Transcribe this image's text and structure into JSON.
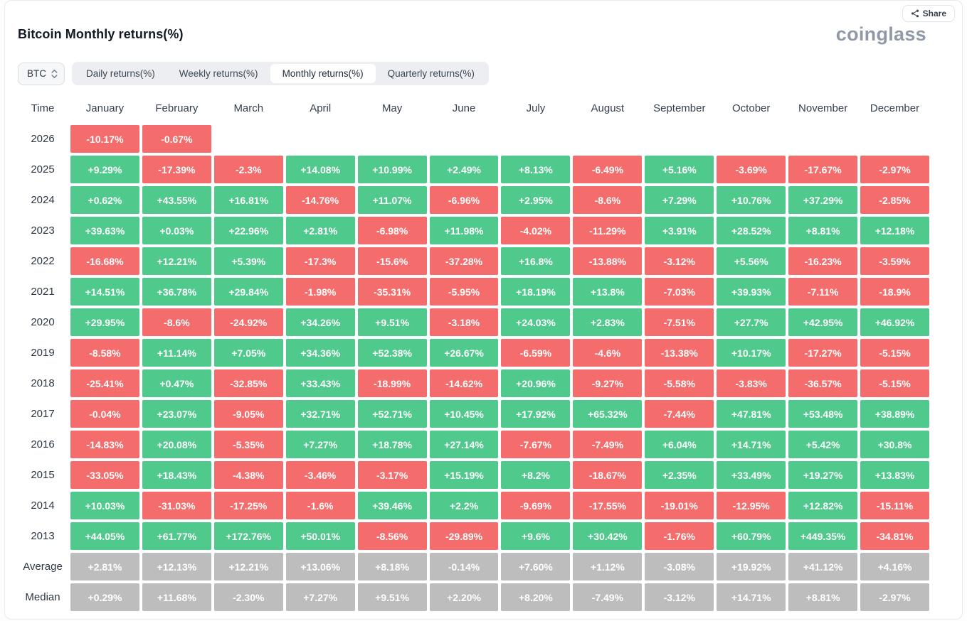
{
  "header": {
    "title": "Bitcoin Monthly returns(%)",
    "logo": "coinglass",
    "share_label": "Share",
    "share_icon": "share-nodes-icon"
  },
  "controls": {
    "coin_selector": {
      "value": "BTC",
      "icon": "updown-chevron-icon"
    },
    "tabs": [
      {
        "name": "tab-daily-returns",
        "label": "Daily returns(%)",
        "active": false
      },
      {
        "name": "tab-weekly-returns",
        "label": "Weekly returns(%)",
        "active": false
      },
      {
        "name": "tab-monthly-returns",
        "label": "Monthly returns(%)",
        "active": true
      },
      {
        "name": "tab-quarterly-returns",
        "label": "Quarterly returns(%)",
        "active": false
      }
    ]
  },
  "chart_data": {
    "type": "heatmap",
    "title": "Bitcoin Monthly returns(%)",
    "legend": "green = positive monthly return, red = negative monthly return, gray = summary rows",
    "columns": [
      "Time",
      "January",
      "February",
      "March",
      "April",
      "May",
      "June",
      "July",
      "August",
      "September",
      "October",
      "November",
      "December"
    ],
    "rows": [
      {
        "label": "2026",
        "summary": false,
        "values": [
          "-10.17%",
          "-0.67%",
          null,
          null,
          null,
          null,
          null,
          null,
          null,
          null,
          null,
          null
        ]
      },
      {
        "label": "2025",
        "summary": false,
        "values": [
          "+9.29%",
          "-17.39%",
          "-2.3%",
          "+14.08%",
          "+10.99%",
          "+2.49%",
          "+8.13%",
          "-6.49%",
          "+5.16%",
          "-3.69%",
          "-17.67%",
          "-2.97%"
        ]
      },
      {
        "label": "2024",
        "summary": false,
        "values": [
          "+0.62%",
          "+43.55%",
          "+16.81%",
          "-14.76%",
          "+11.07%",
          "-6.96%",
          "+2.95%",
          "-8.6%",
          "+7.29%",
          "+10.76%",
          "+37.29%",
          "-2.85%"
        ]
      },
      {
        "label": "2023",
        "summary": false,
        "values": [
          "+39.63%",
          "+0.03%",
          "+22.96%",
          "+2.81%",
          "-6.98%",
          "+11.98%",
          "-4.02%",
          "-11.29%",
          "+3.91%",
          "+28.52%",
          "+8.81%",
          "+12.18%"
        ]
      },
      {
        "label": "2022",
        "summary": false,
        "values": [
          "-16.68%",
          "+12.21%",
          "+5.39%",
          "-17.3%",
          "-15.6%",
          "-37.28%",
          "+16.8%",
          "-13.88%",
          "-3.12%",
          "+5.56%",
          "-16.23%",
          "-3.59%"
        ]
      },
      {
        "label": "2021",
        "summary": false,
        "values": [
          "+14.51%",
          "+36.78%",
          "+29.84%",
          "-1.98%",
          "-35.31%",
          "-5.95%",
          "+18.19%",
          "+13.8%",
          "-7.03%",
          "+39.93%",
          "-7.11%",
          "-18.9%"
        ]
      },
      {
        "label": "2020",
        "summary": false,
        "values": [
          "+29.95%",
          "-8.6%",
          "-24.92%",
          "+34.26%",
          "+9.51%",
          "-3.18%",
          "+24.03%",
          "+2.83%",
          "-7.51%",
          "+27.7%",
          "+42.95%",
          "+46.92%"
        ]
      },
      {
        "label": "2019",
        "summary": false,
        "values": [
          "-8.58%",
          "+11.14%",
          "+7.05%",
          "+34.36%",
          "+52.38%",
          "+26.67%",
          "-6.59%",
          "-4.6%",
          "-13.38%",
          "+10.17%",
          "-17.27%",
          "-5.15%"
        ]
      },
      {
        "label": "2018",
        "summary": false,
        "values": [
          "-25.41%",
          "+0.47%",
          "-32.85%",
          "+33.43%",
          "-18.99%",
          "-14.62%",
          "+20.96%",
          "-9.27%",
          "-5.58%",
          "-3.83%",
          "-36.57%",
          "-5.15%"
        ]
      },
      {
        "label": "2017",
        "summary": false,
        "values": [
          "-0.04%",
          "+23.07%",
          "-9.05%",
          "+32.71%",
          "+52.71%",
          "+10.45%",
          "+17.92%",
          "+65.32%",
          "-7.44%",
          "+47.81%",
          "+53.48%",
          "+38.89%"
        ]
      },
      {
        "label": "2016",
        "summary": false,
        "values": [
          "-14.83%",
          "+20.08%",
          "-5.35%",
          "+7.27%",
          "+18.78%",
          "+27.14%",
          "-7.67%",
          "-7.49%",
          "+6.04%",
          "+14.71%",
          "+5.42%",
          "+30.8%"
        ]
      },
      {
        "label": "2015",
        "summary": false,
        "values": [
          "-33.05%",
          "+18.43%",
          "-4.38%",
          "-3.46%",
          "-3.17%",
          "+15.19%",
          "+8.2%",
          "-18.67%",
          "+2.35%",
          "+33.49%",
          "+19.27%",
          "+13.83%"
        ]
      },
      {
        "label": "2014",
        "summary": false,
        "values": [
          "+10.03%",
          "-31.03%",
          "-17.25%",
          "-1.6%",
          "+39.46%",
          "+2.2%",
          "-9.69%",
          "-17.55%",
          "-19.01%",
          "-12.95%",
          "+12.82%",
          "-15.11%"
        ]
      },
      {
        "label": "2013",
        "summary": false,
        "values": [
          "+44.05%",
          "+61.77%",
          "+172.76%",
          "+50.01%",
          "-8.56%",
          "-29.89%",
          "+9.6%",
          "+30.42%",
          "-1.76%",
          "+60.79%",
          "+449.35%",
          "-34.81%"
        ]
      },
      {
        "label": "Average",
        "summary": true,
        "values": [
          "+2.81%",
          "+12.13%",
          "+12.21%",
          "+13.06%",
          "+8.18%",
          "-0.14%",
          "+7.60%",
          "+1.12%",
          "-3.08%",
          "+19.92%",
          "+41.12%",
          "+4.16%"
        ]
      },
      {
        "label": "Median",
        "summary": true,
        "values": [
          "+0.29%",
          "+11.68%",
          "-2.30%",
          "+7.27%",
          "+9.51%",
          "+2.20%",
          "+8.20%",
          "-7.49%",
          "-3.12%",
          "+14.71%",
          "+8.81%",
          "-2.97%"
        ]
      }
    ],
    "colors": {
      "positive": "#4fc98c",
      "negative": "#f56c6c",
      "summary": "#bdbdbd"
    }
  }
}
